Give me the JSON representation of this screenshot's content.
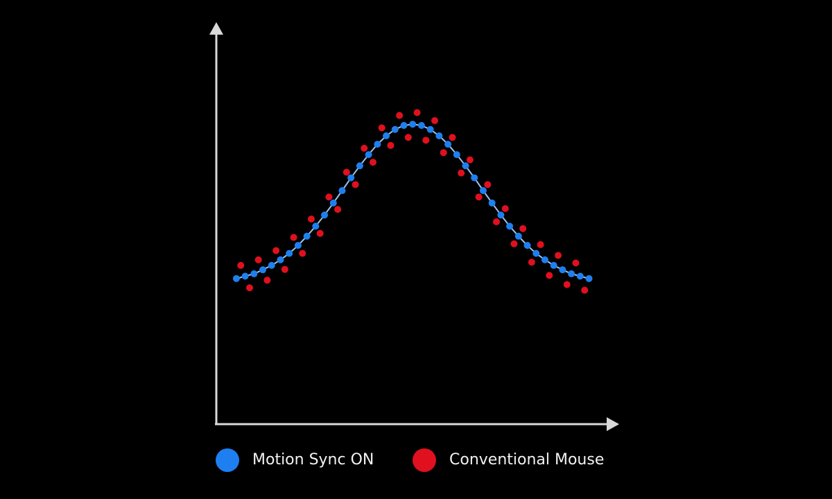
{
  "chart_data": {
    "type": "scatter",
    "xlim": [
      0,
      100
    ],
    "ylim": [
      0,
      100
    ],
    "series": [
      {
        "name": "Motion Sync ON",
        "color": "#1e7ff0",
        "line": true,
        "line_color": "#9cc4ee",
        "x": [
          5,
          7.2,
          9.4,
          11.6,
          13.8,
          16,
          18.2,
          20.4,
          22.6,
          24.8,
          27,
          29.2,
          31.4,
          33.6,
          35.8,
          38,
          40.2,
          42.4,
          44.6,
          46.8,
          49,
          51.2,
          53.4,
          55.6,
          57.8,
          60,
          62.2,
          64.4,
          66.6,
          68.8,
          71,
          73.2,
          75.4,
          77.6,
          79.8,
          82,
          84.2,
          86.4,
          88.6,
          90.8,
          93
        ],
        "values": [
          36.4,
          37.0,
          37.6,
          38.6,
          39.7,
          41.1,
          42.7,
          44.7,
          47.0,
          49.5,
          52.3,
          55.3,
          58.4,
          61.6,
          64.6,
          67.4,
          70.0,
          72.1,
          73.7,
          74.7,
          75.0,
          74.7,
          73.7,
          72.1,
          70.0,
          67.4,
          64.6,
          61.6,
          58.4,
          55.3,
          52.3,
          49.5,
          47.0,
          44.7,
          42.7,
          41.1,
          39.7,
          38.6,
          37.6,
          37.0,
          36.4
        ]
      },
      {
        "name": "Conventional Mouse",
        "color": "#e0101e",
        "x": [
          6.1,
          8.3,
          10.5,
          12.7,
          14.9,
          17.1,
          19.3,
          21.5,
          23.7,
          25.9,
          28.1,
          30.3,
          32.5,
          34.7,
          36.9,
          39.1,
          41.3,
          43.5,
          45.7,
          47.9,
          50.1,
          52.3,
          54.5,
          56.7,
          58.9,
          61.1,
          63.3,
          65.5,
          67.7,
          69.9,
          72.1,
          74.3,
          76.5,
          78.7,
          80.9,
          83.1,
          85.3,
          87.5,
          89.7,
          91.9
        ],
        "values": [
          39.7,
          34.1,
          41.1,
          36.0,
          43.4,
          38.7,
          46.7,
          42.7,
          51.3,
          47.7,
          56.8,
          53.7,
          63.0,
          59.9,
          69.0,
          65.5,
          74.1,
          69.7,
          77.2,
          71.7,
          77.9,
          71.0,
          75.9,
          67.9,
          71.7,
          62.8,
          66.1,
          56.8,
          59.9,
          50.6,
          53.9,
          45.1,
          48.9,
          40.5,
          44.9,
          37.2,
          42.2,
          34.9,
          40.3,
          33.5
        ]
      }
    ]
  }
}
